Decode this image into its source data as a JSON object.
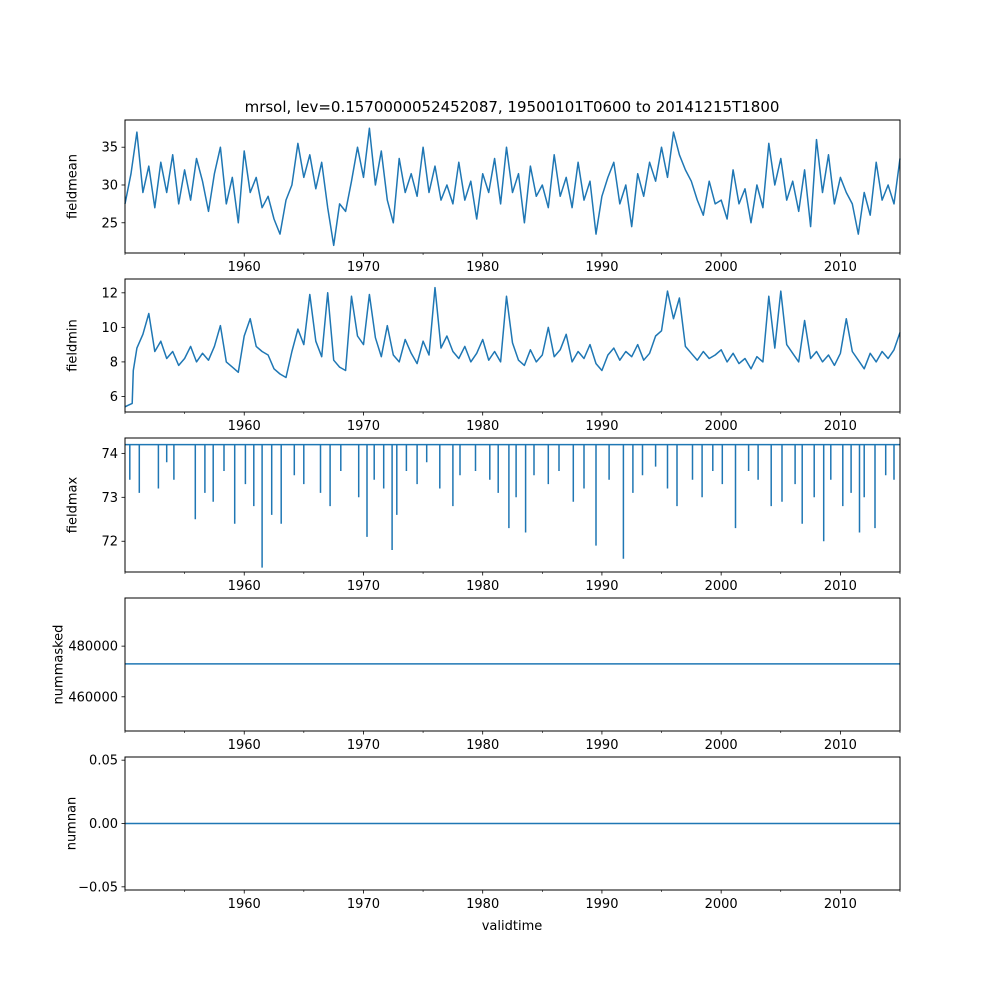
{
  "chart_data": [
    {
      "type": "line",
      "title": "mrsol, lev=0.1570000052452087, 19500101T0600 to 20141215T1800",
      "xlabel": "",
      "ylabel": "fieldmean",
      "xlim": [
        1950.0,
        2015.0
      ],
      "ylim": [
        21.0,
        38.6
      ],
      "xticks": [
        "1960",
        "1970",
        "1980",
        "1990",
        "2000",
        "2010"
      ],
      "yticks": [
        25,
        30,
        35
      ],
      "ytick_labels": [
        "25",
        "30",
        "35"
      ],
      "series": [
        {
          "name": "fieldmean",
          "color": "#1f77b4",
          "x": [
            1950.0,
            1950.5,
            1951.0,
            1951.5,
            1952.0,
            1952.5,
            1953.0,
            1953.5,
            1954.0,
            1954.5,
            1955.0,
            1955.5,
            1956.0,
            1956.5,
            1957.0,
            1957.5,
            1958.0,
            1958.5,
            1959.0,
            1959.5,
            1960.0,
            1960.5,
            1961.0,
            1961.5,
            1962.0,
            1962.5,
            1963.0,
            1963.5,
            1964.0,
            1964.5,
            1965.0,
            1965.5,
            1966.0,
            1966.5,
            1967.0,
            1967.5,
            1968.0,
            1968.5,
            1969.0,
            1969.5,
            1970.0,
            1970.5,
            1971.0,
            1971.5,
            1972.0,
            1972.5,
            1973.0,
            1973.5,
            1974.0,
            1974.5,
            1975.0,
            1975.5,
            1976.0,
            1976.5,
            1977.0,
            1977.5,
            1978.0,
            1978.5,
            1979.0,
            1979.5,
            1980.0,
            1980.5,
            1981.0,
            1981.5,
            1982.0,
            1982.5,
            1983.0,
            1983.5,
            1984.0,
            1984.5,
            1985.0,
            1985.5,
            1986.0,
            1986.5,
            1987.0,
            1987.5,
            1988.0,
            1988.5,
            1989.0,
            1989.5,
            1990.0,
            1990.5,
            1991.0,
            1991.5,
            1992.0,
            1992.5,
            1993.0,
            1993.5,
            1994.0,
            1994.5,
            1995.0,
            1995.5,
            1996.0,
            1996.5,
            1997.0,
            1997.5,
            1998.0,
            1998.5,
            1999.0,
            1999.5,
            2000.0,
            2000.5,
            2001.0,
            2001.5,
            2002.0,
            2002.5,
            2003.0,
            2003.5,
            2004.0,
            2004.5,
            2005.0,
            2005.5,
            2006.0,
            2006.5,
            2007.0,
            2007.5,
            2008.0,
            2008.5,
            2009.0,
            2009.5,
            2010.0,
            2010.5,
            2011.0,
            2011.5,
            2012.0,
            2012.5,
            2013.0,
            2013.5,
            2014.0,
            2014.5,
            2015.0
          ],
          "values": [
            27.5,
            31.5,
            37.0,
            29.0,
            32.5,
            27.0,
            33.0,
            29.0,
            34.0,
            27.5,
            32.0,
            28.0,
            33.5,
            30.5,
            26.5,
            31.5,
            35.0,
            27.5,
            31.0,
            25.0,
            34.5,
            29.0,
            31.0,
            27.0,
            28.5,
            25.5,
            23.5,
            28.0,
            30.0,
            35.5,
            31.0,
            34.0,
            29.5,
            33.0,
            27.0,
            22.0,
            27.5,
            26.5,
            30.5,
            35.0,
            31.0,
            37.5,
            30.0,
            34.5,
            28.0,
            25.0,
            33.5,
            29.0,
            31.5,
            28.5,
            35.0,
            29.0,
            32.5,
            28.0,
            30.0,
            27.5,
            33.0,
            28.0,
            30.5,
            25.5,
            31.5,
            29.0,
            33.5,
            27.5,
            35.0,
            29.0,
            31.5,
            25.0,
            32.5,
            28.5,
            30.0,
            27.0,
            34.0,
            28.5,
            31.0,
            27.0,
            33.0,
            28.0,
            30.5,
            23.5,
            28.5,
            31.0,
            33.0,
            27.5,
            30.0,
            24.5,
            31.5,
            28.5,
            33.0,
            30.5,
            35.0,
            31.0,
            37.0,
            34.0,
            32.0,
            30.5,
            28.0,
            26.0,
            30.5,
            27.5,
            28.0,
            25.5,
            32.0,
            27.5,
            29.5,
            25.0,
            30.0,
            27.0,
            35.5,
            30.0,
            33.5,
            28.0,
            30.5,
            26.5,
            32.0,
            24.5,
            36.0,
            29.0,
            34.0,
            27.5,
            31.0,
            29.0,
            27.5,
            23.5,
            29.0,
            26.0,
            33.0,
            28.0,
            30.0,
            27.5,
            33.5
          ]
        }
      ]
    },
    {
      "type": "line",
      "title": "",
      "xlabel": "",
      "ylabel": "fieldmin",
      "xlim": [
        1950.0,
        2015.0
      ],
      "ylim": [
        5.1,
        12.8
      ],
      "xticks": [
        "1960",
        "1970",
        "1980",
        "1990",
        "2000",
        "2010"
      ],
      "yticks": [
        6,
        8,
        10,
        12
      ],
      "ytick_labels": [
        "6",
        "8",
        "10",
        "12"
      ],
      "series": [
        {
          "name": "fieldmin",
          "color": "#1f77b4",
          "x": [
            1950.0,
            1950.3,
            1950.6,
            1950.7,
            1951.0,
            1951.5,
            1952.0,
            1952.5,
            1953.0,
            1953.5,
            1954.0,
            1954.5,
            1955.0,
            1955.5,
            1956.0,
            1956.5,
            1957.0,
            1957.5,
            1958.0,
            1958.5,
            1959.0,
            1959.5,
            1960.0,
            1960.5,
            1961.0,
            1961.5,
            1962.0,
            1962.5,
            1963.0,
            1963.5,
            1964.0,
            1964.5,
            1965.0,
            1965.5,
            1966.0,
            1966.5,
            1967.0,
            1967.5,
            1968.0,
            1968.5,
            1969.0,
            1969.5,
            1970.0,
            1970.5,
            1971.0,
            1971.5,
            1972.0,
            1972.5,
            1973.0,
            1973.5,
            1974.0,
            1974.5,
            1975.0,
            1975.5,
            1976.0,
            1976.5,
            1977.0,
            1977.5,
            1978.0,
            1978.5,
            1979.0,
            1979.5,
            1980.0,
            1980.5,
            1981.0,
            1981.5,
            1982.0,
            1982.5,
            1983.0,
            1983.5,
            1984.0,
            1984.5,
            1985.0,
            1985.5,
            1986.0,
            1986.5,
            1987.0,
            1987.5,
            1988.0,
            1988.5,
            1989.0,
            1989.5,
            1990.0,
            1990.5,
            1991.0,
            1991.5,
            1992.0,
            1992.5,
            1993.0,
            1993.5,
            1994.0,
            1994.5,
            1995.0,
            1995.5,
            1996.0,
            1996.5,
            1997.0,
            1997.5,
            1998.0,
            1998.5,
            1999.0,
            1999.5,
            2000.0,
            2000.5,
            2001.0,
            2001.5,
            2002.0,
            2002.5,
            2003.0,
            2003.5,
            2004.0,
            2004.5,
            2005.0,
            2005.5,
            2006.0,
            2006.5,
            2007.0,
            2007.5,
            2008.0,
            2008.5,
            2009.0,
            2009.5,
            2010.0,
            2010.5,
            2011.0,
            2011.5,
            2012.0,
            2012.5,
            2013.0,
            2013.5,
            2014.0,
            2014.5,
            2015.0
          ],
          "values": [
            5.4,
            5.5,
            5.6,
            7.5,
            8.8,
            9.6,
            10.8,
            8.6,
            9.2,
            8.2,
            8.6,
            7.8,
            8.2,
            8.9,
            8.0,
            8.5,
            8.1,
            8.9,
            10.1,
            8.0,
            7.7,
            7.4,
            9.5,
            10.5,
            8.9,
            8.6,
            8.4,
            7.6,
            7.3,
            7.1,
            8.6,
            9.9,
            9.0,
            11.9,
            9.2,
            8.3,
            12.0,
            8.1,
            7.7,
            7.5,
            11.8,
            9.5,
            9.0,
            11.9,
            9.4,
            8.3,
            10.1,
            8.4,
            8.0,
            9.3,
            8.5,
            7.9,
            9.2,
            8.4,
            12.3,
            8.8,
            9.5,
            8.6,
            8.2,
            8.9,
            8.0,
            8.5,
            9.3,
            8.1,
            8.6,
            8.0,
            11.8,
            9.1,
            8.1,
            7.8,
            8.7,
            8.0,
            8.4,
            10.0,
            8.3,
            8.7,
            9.6,
            8.0,
            8.6,
            8.2,
            9.0,
            7.9,
            7.5,
            8.4,
            8.8,
            8.1,
            8.6,
            8.3,
            9.0,
            8.1,
            8.5,
            9.5,
            9.8,
            12.1,
            10.5,
            11.7,
            8.9,
            8.5,
            8.1,
            8.6,
            8.2,
            8.4,
            8.7,
            8.0,
            8.5,
            7.9,
            8.2,
            7.6,
            8.3,
            8.0,
            11.8,
            8.8,
            12.1,
            9.0,
            8.5,
            8.0,
            10.4,
            8.2,
            8.6,
            8.0,
            8.4,
            7.8,
            8.5,
            10.5,
            8.6,
            8.1,
            7.6,
            8.5,
            8.0,
            8.6,
            8.2,
            8.7,
            9.7
          ]
        }
      ]
    },
    {
      "type": "line",
      "title": "",
      "xlabel": "",
      "ylabel": "fieldmax",
      "xlim": [
        1950.0,
        2015.0
      ],
      "ylim": [
        71.3,
        74.35
      ],
      "xticks": [
        "1960",
        "1970",
        "1980",
        "1990",
        "2000",
        "2010"
      ],
      "yticks": [
        72,
        73,
        74
      ],
      "ytick_labels": [
        "72",
        "73",
        "74"
      ],
      "series": [
        {
          "name": "fieldmax",
          "color": "#1f77b4",
          "baseline": 74.2,
          "x": [
            1950.4,
            1951.2,
            1952.8,
            1953.5,
            1954.1,
            1955.9,
            1956.7,
            1957.4,
            1958.3,
            1959.2,
            1960.1,
            1960.8,
            1961.5,
            1962.3,
            1963.1,
            1964.2,
            1965.0,
            1966.4,
            1967.2,
            1968.1,
            1969.6,
            1970.3,
            1970.9,
            1971.7,
            1972.4,
            1972.8,
            1973.6,
            1974.5,
            1975.3,
            1976.4,
            1977.5,
            1978.1,
            1979.4,
            1980.6,
            1981.3,
            1982.2,
            1982.8,
            1983.6,
            1984.3,
            1985.5,
            1986.4,
            1987.6,
            1988.5,
            1989.5,
            1990.6,
            1991.8,
            1992.6,
            1993.4,
            1994.5,
            1995.5,
            1996.3,
            1997.6,
            1998.4,
            1999.3,
            2000.1,
            2001.2,
            2002.3,
            2003.1,
            2004.2,
            2005.1,
            2006.2,
            2006.8,
            2007.8,
            2008.6,
            2009.2,
            2010.2,
            2010.9,
            2011.6,
            2012.0,
            2012.9,
            2013.8,
            2014.5
          ],
          "values": [
            73.4,
            73.1,
            73.2,
            73.8,
            73.4,
            72.5,
            73.1,
            72.9,
            73.6,
            72.4,
            73.3,
            72.8,
            71.4,
            72.6,
            72.4,
            73.5,
            73.3,
            73.1,
            72.8,
            73.6,
            73.0,
            72.1,
            73.4,
            73.2,
            71.8,
            72.6,
            73.6,
            73.3,
            73.8,
            73.2,
            72.8,
            73.5,
            73.6,
            73.4,
            73.1,
            72.3,
            73.0,
            72.2,
            73.5,
            73.3,
            73.6,
            72.9,
            73.2,
            71.9,
            73.4,
            71.6,
            73.1,
            73.5,
            73.7,
            73.2,
            72.8,
            73.4,
            73.0,
            73.6,
            73.3,
            72.3,
            73.6,
            73.4,
            72.8,
            72.9,
            73.3,
            72.4,
            73.0,
            72.0,
            73.4,
            72.8,
            73.1,
            72.2,
            73.0,
            72.3,
            73.5,
            73.4
          ]
        }
      ]
    },
    {
      "type": "line",
      "title": "",
      "xlabel": "",
      "ylabel": "nummasked",
      "xlim": [
        1950.0,
        2015.0
      ],
      "ylim": [
        446500,
        499000
      ],
      "xticks": [
        "1960",
        "1970",
        "1980",
        "1990",
        "2000",
        "2010"
      ],
      "yticks": [
        460000,
        480000
      ],
      "ytick_labels": [
        "460000",
        "480000"
      ],
      "series": [
        {
          "name": "nummasked",
          "color": "#1f77b4",
          "x": [
            1950.0,
            2015.0
          ],
          "values": [
            473000,
            473000
          ]
        }
      ]
    },
    {
      "type": "line",
      "title": "",
      "xlabel": "validtime",
      "ylabel": "numnan",
      "xlim": [
        1950.0,
        2015.0
      ],
      "ylim": [
        -0.0525,
        0.0525
      ],
      "xticks": [
        "1960",
        "1970",
        "1980",
        "1990",
        "2000",
        "2010"
      ],
      "yticks": [
        -0.05,
        0.0,
        0.05
      ],
      "ytick_labels": [
        "−0.05",
        "0.00",
        "0.05"
      ],
      "series": [
        {
          "name": "numnan",
          "color": "#1f77b4",
          "x": [
            1950.0,
            2015.0
          ],
          "values": [
            0.0,
            0.0
          ]
        }
      ]
    }
  ]
}
